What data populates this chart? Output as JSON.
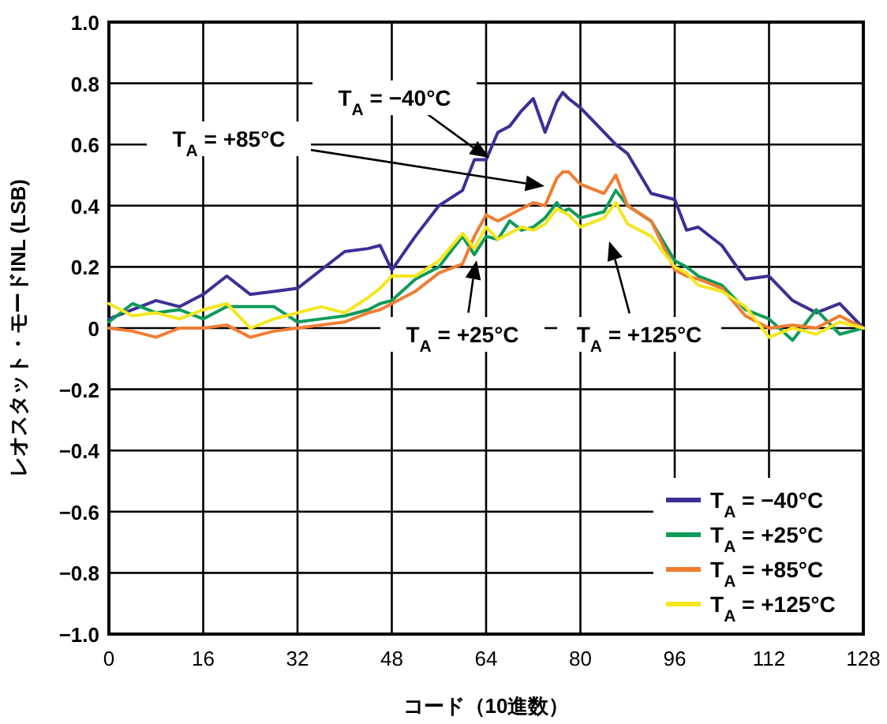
{
  "chart_data": {
    "type": "line",
    "xlabel": "コード（10進数）",
    "ylabel": "レオスタット・モードINL (LSB)",
    "xlim": [
      0,
      128
    ],
    "xticks": [
      0,
      16,
      32,
      48,
      64,
      80,
      96,
      112,
      128
    ],
    "ylim": [
      -1,
      1
    ],
    "yticks": [
      {
        "value": -1,
        "label": "−1.0"
      },
      {
        "value": -0.8,
        "label": "−0.8"
      },
      {
        "value": -0.6,
        "label": "−0.6"
      },
      {
        "value": -0.4,
        "label": "−0.4"
      },
      {
        "value": -0.2,
        "label": "−0.2"
      },
      0,
      0.2,
      0.4,
      0.6,
      0.8,
      {
        "value": 1,
        "label": "1.0"
      }
    ],
    "grid": true,
    "legend": "bottom right",
    "line_style": "solid",
    "marker": "none",
    "x": [
      0,
      4,
      8,
      12,
      16,
      20,
      24,
      28,
      32,
      36,
      40,
      44,
      46,
      48,
      52,
      56,
      60,
      62,
      64,
      66,
      68,
      70,
      72,
      74,
      76,
      77,
      78,
      80,
      84,
      86,
      88,
      92,
      96,
      98,
      100,
      104,
      108,
      112,
      116,
      120,
      124,
      128
    ],
    "series": [
      {
        "name": "T$_{A}$ = −40°C",
        "color": "#3b2f96",
        "values": [
          0.03,
          0.06,
          0.09,
          0.07,
          0.11,
          0.17,
          0.11,
          0.12,
          0.13,
          0.19,
          0.25,
          0.26,
          0.27,
          0.19,
          0.3,
          0.4,
          0.45,
          0.55,
          0.55,
          0.64,
          0.66,
          0.71,
          0.75,
          0.64,
          0.74,
          0.77,
          0.75,
          0.72,
          0.64,
          0.6,
          0.57,
          0.44,
          0.42,
          0.32,
          0.33,
          0.27,
          0.16,
          0.17,
          0.09,
          0.05,
          0.08,
          0
        ]
      },
      {
        "name": "T$_{A}$ = +25°C",
        "color": "#0f9b5a",
        "values": [
          0.02,
          0.08,
          0.05,
          0.06,
          0.03,
          0.07,
          0.07,
          0.07,
          0.02,
          0.03,
          0.04,
          0.06,
          0.08,
          0.09,
          0.16,
          0.2,
          0.3,
          0.24,
          0.3,
          0.29,
          0.35,
          0.32,
          0.33,
          0.36,
          0.41,
          0.38,
          0.39,
          0.36,
          0.38,
          0.45,
          0.4,
          0.35,
          0.22,
          0.2,
          0.17,
          0.14,
          0.06,
          0.03,
          -0.04,
          0.06,
          -0.02,
          0
        ]
      },
      {
        "name": "T$_{A}$ = +85°C",
        "color": "#f07d32",
        "values": [
          0.0,
          -0.01,
          -0.03,
          0.0,
          0.0,
          0.01,
          -0.03,
          -0.01,
          0.0,
          0.01,
          0.02,
          0.05,
          0.06,
          0.08,
          0.12,
          0.18,
          0.21,
          0.3,
          0.37,
          0.35,
          0.37,
          0.39,
          0.41,
          0.4,
          0.49,
          0.51,
          0.51,
          0.47,
          0.44,
          0.5,
          0.4,
          0.35,
          0.19,
          0.17,
          0.16,
          0.13,
          0.04,
          0.0,
          0.01,
          0.0,
          0.04,
          0
        ]
      },
      {
        "name": "T$_{A}$ = +125°C",
        "color": "#f5e61e",
        "values": [
          0.08,
          0.04,
          0.05,
          0.03,
          0.06,
          0.08,
          0.0,
          0.03,
          0.05,
          0.07,
          0.05,
          0.1,
          0.13,
          0.17,
          0.17,
          0.22,
          0.31,
          0.26,
          0.33,
          0.29,
          0.31,
          0.33,
          0.32,
          0.34,
          0.39,
          0.38,
          0.37,
          0.33,
          0.36,
          0.41,
          0.34,
          0.3,
          0.2,
          0.18,
          0.14,
          0.12,
          0.07,
          -0.03,
          0.0,
          -0.02,
          0.02,
          0
        ]
      }
    ],
    "annotations": [
      "T$_{A}$ = −40°C",
      "T$_{A}$ = +85°C",
      "T$_{A}$ = +25°C",
      "T$_{A}$ = +125°C"
    ]
  }
}
